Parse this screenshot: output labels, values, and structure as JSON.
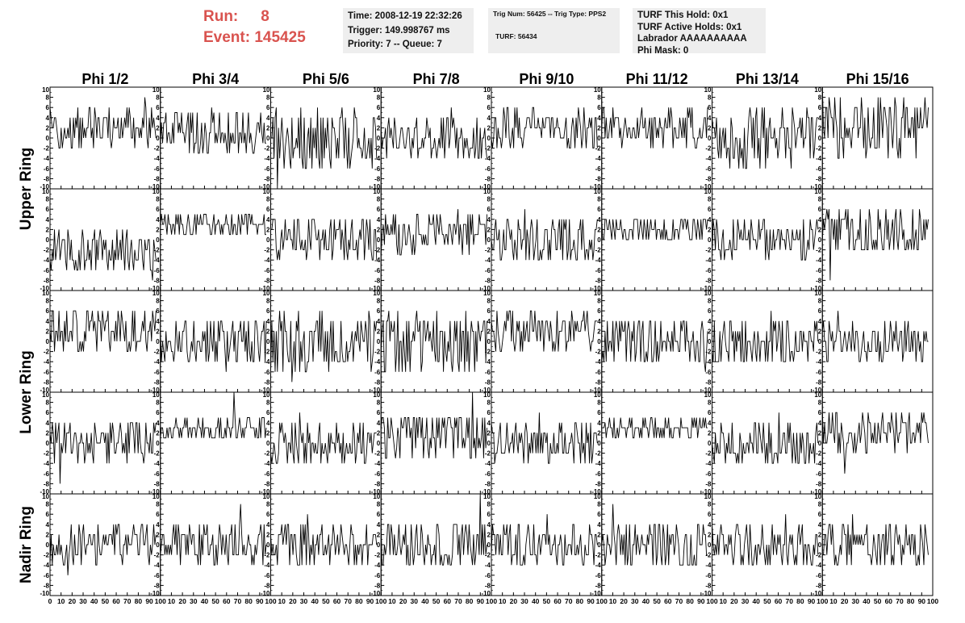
{
  "header": {
    "run_label": "Run:",
    "run_value": "8",
    "event_label": "Event:",
    "event_value": "145425",
    "accent_color": "#d9534f"
  },
  "info_boxes": {
    "time_line": "Time: 2008-12-19 22:32:26",
    "trigger_line": "Trigger: 149.998767 ms",
    "priority_line": "Priority: 7 -- Queue: 7",
    "trig_line": "Trig Num: 56425 -- Trig Type: PPS2",
    "turf_line": "TURF: 56434",
    "turf_hold_line": "TURF This Hold: 0x1",
    "turf_active_line": "TURF Active Holds: 0x1",
    "labrador_line": "Labrador AAAAAAAAAA",
    "phi_mask_line": "Phi Mask: 0"
  },
  "chart_data": {
    "type": "line",
    "grid": false,
    "rows": [
      "Upper Ring",
      "Upper Ring",
      "Lower Ring",
      "Lower Ring",
      "Nadir Ring"
    ],
    "row_labels": [
      "Upper Ring",
      "Lower Ring",
      "Nadir Ring"
    ],
    "columns": [
      "Phi 1/2",
      "Phi 3/4",
      "Phi 5/6",
      "Phi 7/8",
      "Phi 9/10",
      "Phi 11/12",
      "Phi 13/14",
      "Phi 15/16"
    ],
    "xlim": [
      0,
      100
    ],
    "ylim": [
      -10,
      10
    ],
    "x_ticks": [
      0,
      10,
      20,
      30,
      40,
      50,
      60,
      70,
      80,
      90,
      100
    ],
    "y_ticks": [
      -10,
      -8,
      -6,
      -4,
      -2,
      0,
      2,
      4,
      6,
      8,
      10
    ],
    "n_samples": 96,
    "panel_traces": [
      [
        {
          "baseline": 2,
          "spread": 4,
          "peak": 8
        },
        {
          "baseline": 1,
          "spread": 4,
          "peak": 6
        },
        {
          "baseline": 0,
          "spread": 6,
          "peak": -10
        },
        {
          "baseline": 0,
          "spread": 4,
          "peak": 6
        },
        {
          "baseline": 2,
          "spread": 4,
          "peak": 6
        },
        {
          "baseline": 2,
          "spread": 4,
          "peak": 6
        },
        {
          "baseline": 0,
          "spread": 6,
          "peak": 6
        },
        {
          "baseline": 2,
          "spread": 6,
          "peak": 10
        }
      ],
      [
        {
          "baseline": -2,
          "spread": 4,
          "peak": -8
        },
        {
          "baseline": 3,
          "spread": 2,
          "peak": 4
        },
        {
          "baseline": 0,
          "spread": 4,
          "peak": 4
        },
        {
          "baseline": 1,
          "spread": 4,
          "peak": 6
        },
        {
          "baseline": 0,
          "spread": 5,
          "peak": 6
        },
        {
          "baseline": 2,
          "spread": 3,
          "peak": 4
        },
        {
          "baseline": 0,
          "spread": 4,
          "peak": 4
        },
        {
          "baseline": 2,
          "spread": 5,
          "peak": -8
        }
      ],
      [
        {
          "baseline": 2,
          "spread": 4,
          "peak": 6
        },
        {
          "baseline": 0,
          "spread": 5,
          "peak": -6
        },
        {
          "baseline": 0,
          "spread": 6,
          "peak": -8
        },
        {
          "baseline": 0,
          "spread": 6,
          "peak": 6
        },
        {
          "baseline": 2,
          "spread": 4,
          "peak": 6
        },
        {
          "baseline": 0,
          "spread": 5,
          "peak": -6
        },
        {
          "baseline": 0,
          "spread": 5,
          "peak": 6
        },
        {
          "baseline": 0,
          "spread": 4,
          "peak": 6
        }
      ],
      [
        {
          "baseline": 0,
          "spread": 5,
          "peak": -8
        },
        {
          "baseline": 3,
          "spread": 2,
          "peak": 10
        },
        {
          "baseline": 0,
          "spread": 4,
          "peak": 6
        },
        {
          "baseline": 1,
          "spread": 5,
          "peak": 10
        },
        {
          "baseline": 0,
          "spread": 4,
          "peak": 6
        },
        {
          "baseline": 3,
          "spread": 2,
          "peak": 4
        },
        {
          "baseline": 0,
          "spread": 4,
          "peak": 6
        },
        {
          "baseline": 2,
          "spread": 4,
          "peak": -6
        }
      ],
      [
        {
          "baseline": 0,
          "spread": 4,
          "peak": -6
        },
        {
          "baseline": 0,
          "spread": 4,
          "peak": 8
        },
        {
          "baseline": 0,
          "spread": 4,
          "peak": 6
        },
        {
          "baseline": 0,
          "spread": 5,
          "peak": 10
        },
        {
          "baseline": 0,
          "spread": 4,
          "peak": 6
        },
        {
          "baseline": 0,
          "spread": 5,
          "peak": 8
        },
        {
          "baseline": 0,
          "spread": 4,
          "peak": 6
        },
        {
          "baseline": 0,
          "spread": 4,
          "peak": 6
        }
      ]
    ]
  }
}
